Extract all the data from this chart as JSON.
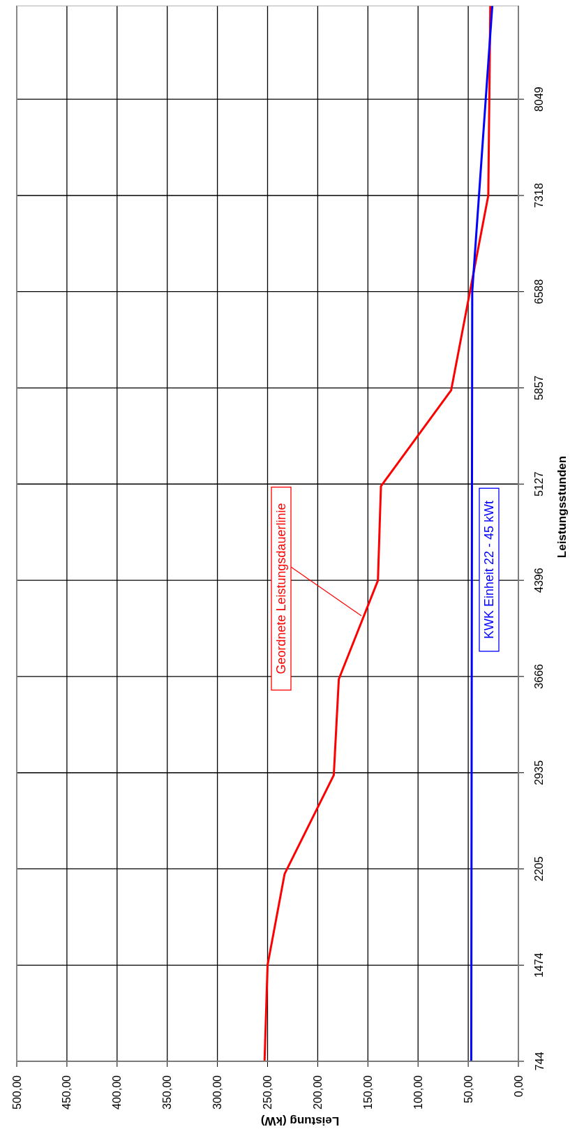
{
  "chart_data": {
    "type": "line",
    "xlabel": "Leistung (kW)",
    "ylabel": "Leistungsstunden",
    "ylim": [
      744,
      8760
    ],
    "yticks": [
      744,
      1474,
      2205,
      2935,
      3666,
      4396,
      5127,
      5857,
      6588,
      7318,
      8049
    ],
    "xlim": [
      500,
      0
    ],
    "xticks": [
      {
        "value": 0,
        "label": "0,00"
      },
      {
        "value": 50,
        "label": "50,00"
      },
      {
        "value": 100,
        "label": "100,00"
      },
      {
        "value": 150,
        "label": "150,00"
      },
      {
        "value": 200,
        "label": "200,00"
      },
      {
        "value": 250,
        "label": "250,00"
      },
      {
        "value": 300,
        "label": "300,00"
      },
      {
        "value": 350,
        "label": "350,00"
      },
      {
        "value": 400,
        "label": "400,00"
      },
      {
        "value": 450,
        "label": "450,00"
      },
      {
        "value": 500,
        "label": "500,00"
      }
    ],
    "grid": true,
    "legend": false,
    "marker": "none",
    "line_style": "solid",
    "series": [
      {
        "name": "Geordnete Leistungsdauerlinie",
        "color": "#ff0000",
        "x": [
          253,
          250,
          233,
          184,
          179,
          140,
          137,
          67,
          30,
          28
        ],
        "values": [
          744,
          1474,
          2167,
          2917,
          3645,
          4395,
          5111,
          5840,
          7318,
          8760
        ]
      },
      {
        "name": "KWK Einheit 22 - 45 kWt",
        "color": "#0000ff",
        "x": [
          47,
          46,
          26
        ],
        "values": [
          744,
          6588,
          8760
        ]
      }
    ]
  }
}
